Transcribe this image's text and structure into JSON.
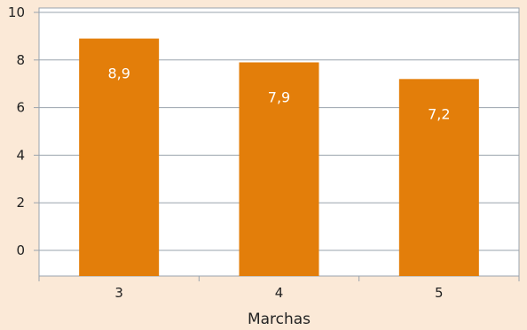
{
  "chart_data": {
    "type": "bar",
    "categories": [
      "3",
      "4",
      "5"
    ],
    "values": [
      8.9,
      7.9,
      7.2
    ],
    "value_labels": [
      "8,9",
      "7,9",
      "7,2"
    ],
    "xlabel": "Marchas",
    "ylabel": "",
    "ylim": [
      0,
      10
    ],
    "yticks": [
      "0",
      "2",
      "4",
      "6",
      "8",
      "10"
    ],
    "grid": true,
    "colors": {
      "bar": "#e37e0a",
      "page_background": "#fbe9d7",
      "plot_background": "#ffffff",
      "grid": "#9aa3ad"
    }
  }
}
